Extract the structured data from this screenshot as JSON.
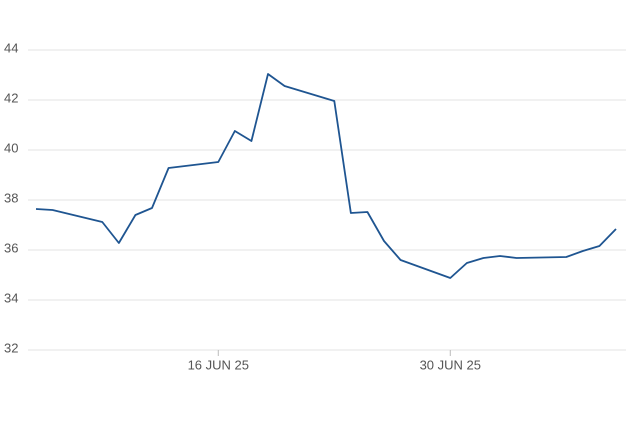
{
  "chart_data": {
    "type": "line",
    "x": [
      "2025-06-05",
      "2025-06-06",
      "2025-06-09",
      "2025-06-10",
      "2025-06-11",
      "2025-06-12",
      "2025-06-13",
      "2025-06-16",
      "2025-06-17",
      "2025-06-18",
      "2025-06-19",
      "2025-06-20",
      "2025-06-23",
      "2025-06-24",
      "2025-06-25",
      "2025-06-26",
      "2025-06-27",
      "2025-06-30",
      "2025-07-01",
      "2025-07-02",
      "2025-07-03",
      "2025-07-04",
      "2025-07-07",
      "2025-07-08",
      "2025-07-09",
      "2025-07-10"
    ],
    "series": [
      {
        "color": "#1f5591",
        "values": [
          37.64,
          37.6,
          37.12,
          36.28,
          37.4,
          37.68,
          39.28,
          39.52,
          40.76,
          40.36,
          43.04,
          42.56,
          41.96,
          37.48,
          37.52,
          36.36,
          35.6,
          34.88,
          35.48,
          35.68,
          35.76,
          35.68,
          35.72,
          35.96,
          36.16,
          36.84
        ]
      }
    ],
    "xlim": [
      "2025-06-05",
      "2025-07-10"
    ],
    "xticks": [
      {
        "value": "2025-06-16",
        "label": "16 JUN 25"
      },
      {
        "value": "2025-06-30",
        "label": "30 JUN 25"
      }
    ],
    "ylim": [
      32,
      44
    ],
    "yticks": [
      32,
      34,
      36,
      38,
      40,
      42,
      44
    ],
    "grid": true
  }
}
